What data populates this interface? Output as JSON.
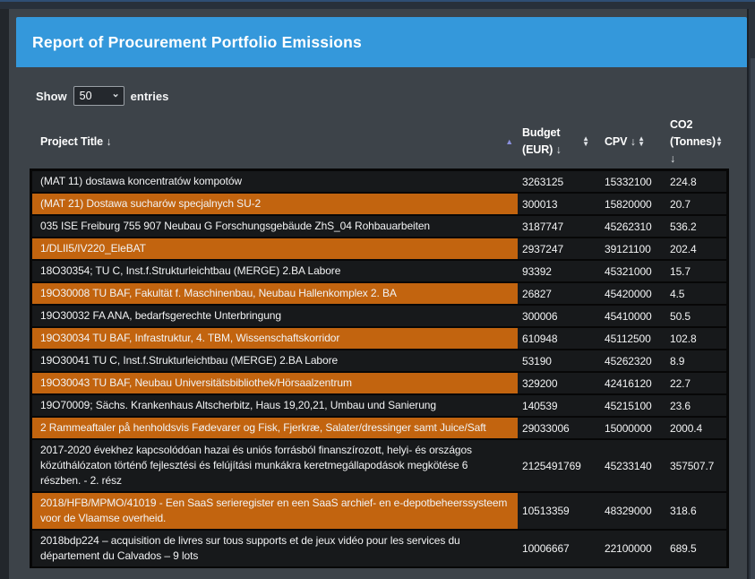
{
  "banner": {
    "title": "Report of Procurement Portfolio Emissions"
  },
  "controls": {
    "show_label": "Show",
    "entries_label": "entries",
    "page_size": "50"
  },
  "icons": {
    "column_arrow": "↓",
    "select_caret": "⌄",
    "sort_asc": "▲",
    "sort_desc": "▼"
  },
  "colors": {
    "accent": "#3498db",
    "highlight": "#c2640f",
    "sort_active": "#8a90dd",
    "row_bg": "#17191b"
  },
  "table": {
    "columns": [
      {
        "key": "title",
        "label": "Project Title",
        "sort": "ascending"
      },
      {
        "key": "budget",
        "label": "Budget (EUR)",
        "sort": "none"
      },
      {
        "key": "cpv",
        "label": "CPV",
        "sort": "none"
      },
      {
        "key": "co2",
        "label": "CO2 (Tonnes)",
        "sort": "none"
      }
    ],
    "rows": [
      {
        "title": "(MAT 11) dostawa koncentratów kompotów",
        "budget": "3263125",
        "cpv": "15332100",
        "co2": "224.8",
        "highlighted": false
      },
      {
        "title": "(MAT 21) Dostawa sucharów specjalnych SU-2",
        "budget": "300013",
        "cpv": "15820000",
        "co2": "20.7",
        "highlighted": true
      },
      {
        "title": "035 ISE Freiburg 755 907 Neubau G Forschungsgebäude ZhS_04 Rohbauarbeiten",
        "budget": "3187747",
        "cpv": "45262310",
        "co2": "536.2",
        "highlighted": false
      },
      {
        "title": "1/DLII5/IV220_EleBAT",
        "budget": "2937247",
        "cpv": "39121100",
        "co2": "202.4",
        "highlighted": true
      },
      {
        "title": "18O30354; TU C, Inst.f.Strukturleichtbau (MERGE) 2.BA Labore",
        "budget": "93392",
        "cpv": "45321000",
        "co2": "15.7",
        "highlighted": false
      },
      {
        "title": "19O30008 TU BAF, Fakultät f. Maschinenbau, Neubau Hallenkomplex 2. BA",
        "budget": "26827",
        "cpv": "45420000",
        "co2": "4.5",
        "highlighted": true
      },
      {
        "title": "19O30032 FA ANA, bedarfsgerechte Unterbringung",
        "budget": "300006",
        "cpv": "45410000",
        "co2": "50.5",
        "highlighted": false
      },
      {
        "title": "19O30034 TU BAF, Infrastruktur, 4. TBM, Wissenschaftskorridor",
        "budget": "610948",
        "cpv": "45112500",
        "co2": "102.8",
        "highlighted": true
      },
      {
        "title": "19O30041 TU C, Inst.f.Strukturleichtbau (MERGE) 2.BA Labore",
        "budget": "53190",
        "cpv": "45262320",
        "co2": "8.9",
        "highlighted": false
      },
      {
        "title": "19O30043 TU BAF, Neubau Universitätsbibliothek/Hörsaalzentrum",
        "budget": "329200",
        "cpv": "42416120",
        "co2": "22.7",
        "highlighted": true
      },
      {
        "title": "19O70009; Sächs. Krankenhaus Altscherbitz, Haus 19,20,21, Umbau und Sanierung",
        "budget": "140539",
        "cpv": "45215100",
        "co2": "23.6",
        "highlighted": false
      },
      {
        "title": "2 Rammeaftaler på henholdsvis Fødevarer og Fisk, Fjerkræ, Salater/dressinger samt Juice/Saft",
        "budget": "29033006",
        "cpv": "15000000",
        "co2": "2000.4",
        "highlighted": true
      },
      {
        "title": "2017-2020 évekhez kapcsolódóan hazai és uniós forrásból finanszírozott, helyi- és országos közúthálózaton történő fejlesztési és felújítási munkákra keretmegállapodások megkötése 6 részben. - 2. rész",
        "budget": "2125491769",
        "cpv": "45233140",
        "co2": "357507.7",
        "highlighted": false
      },
      {
        "title": "2018/HFB/MPMO/41019 - Een SaaS serieregister en een SaaS archief- en e-depotbeheerssysteem voor de Vlaamse overheid.",
        "budget": "10513359",
        "cpv": "48329000",
        "co2": "318.6",
        "highlighted": true
      },
      {
        "title": "2018bdp224 – acquisition de livres sur tous supports et de jeux vidéo pour les services du département du Calvados – 9 lots",
        "budget": "10006667",
        "cpv": "22100000",
        "co2": "689.5",
        "highlighted": false
      }
    ]
  }
}
